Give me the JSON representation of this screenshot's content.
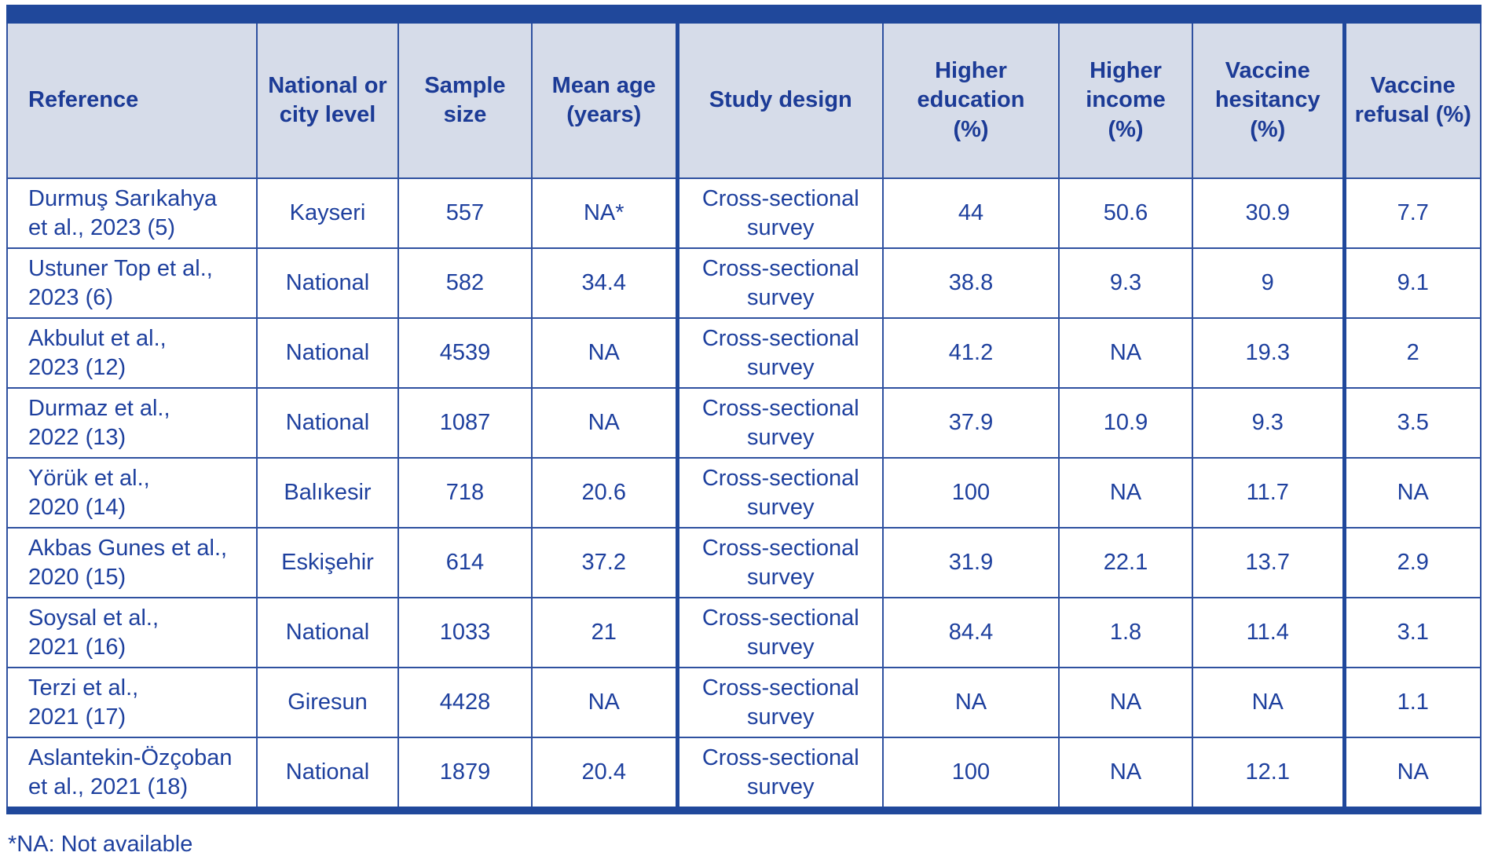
{
  "table": {
    "columns": [
      {
        "key": "reference",
        "label": "Reference"
      },
      {
        "key": "level",
        "label": "National or\ncity level"
      },
      {
        "key": "sample_size",
        "label": "Sample\nsize"
      },
      {
        "key": "mean_age",
        "label": "Mean age\n(years)"
      },
      {
        "key": "study_design",
        "label": "Study design"
      },
      {
        "key": "higher_education",
        "label": "Higher\neducation\n(%)"
      },
      {
        "key": "higher_income",
        "label": "Higher\nincome\n(%)"
      },
      {
        "key": "vaccine_hesitancy",
        "label": "Vaccine\nhesitancy\n(%)"
      },
      {
        "key": "vaccine_refusal",
        "label": "Vaccine\nrefusal (%)"
      }
    ],
    "rows": [
      {
        "reference": "Durmuş Sarıkahya\net al., 2023 (5)",
        "level": "Kayseri",
        "sample_size": "557",
        "mean_age": "NA*",
        "study_design": "Cross-sectional\nsurvey",
        "higher_education": "44",
        "higher_income": "50.6",
        "vaccine_hesitancy": "30.9",
        "vaccine_refusal": "7.7"
      },
      {
        "reference": "Ustuner Top et al.,\n2023 (6)",
        "level": "National",
        "sample_size": "582",
        "mean_age": "34.4",
        "study_design": "Cross-sectional\nsurvey",
        "higher_education": "38.8",
        "higher_income": "9.3",
        "vaccine_hesitancy": "9",
        "vaccine_refusal": "9.1"
      },
      {
        "reference": "Akbulut et al.,\n2023 (12)",
        "level": "National",
        "sample_size": "4539",
        "mean_age": "NA",
        "study_design": "Cross-sectional\nsurvey",
        "higher_education": "41.2",
        "higher_income": "NA",
        "vaccine_hesitancy": "19.3",
        "vaccine_refusal": "2"
      },
      {
        "reference": "Durmaz et al.,\n2022 (13)",
        "level": "National",
        "sample_size": "1087",
        "mean_age": "NA",
        "study_design": "Cross-sectional\nsurvey",
        "higher_education": "37.9",
        "higher_income": "10.9",
        "vaccine_hesitancy": "9.3",
        "vaccine_refusal": "3.5"
      },
      {
        "reference": "Yörük et al.,\n2020 (14)",
        "level": "Balıkesir",
        "sample_size": "718",
        "mean_age": "20.6",
        "study_design": "Cross-sectional\nsurvey",
        "higher_education": "100",
        "higher_income": "NA",
        "vaccine_hesitancy": "11.7",
        "vaccine_refusal": "NA"
      },
      {
        "reference": "Akbas Gunes et al.,\n2020 (15)",
        "level": "Eskişehir",
        "sample_size": "614",
        "mean_age": "37.2",
        "study_design": "Cross-sectional\nsurvey",
        "higher_education": "31.9",
        "higher_income": "22.1",
        "vaccine_hesitancy": "13.7",
        "vaccine_refusal": "2.9"
      },
      {
        "reference": "Soysal et al.,\n2021 (16)",
        "level": "National",
        "sample_size": "1033",
        "mean_age": "21",
        "study_design": "Cross-sectional\nsurvey",
        "higher_education": "84.4",
        "higher_income": "1.8",
        "vaccine_hesitancy": "11.4",
        "vaccine_refusal": "3.1"
      },
      {
        "reference": "Terzi et al.,\n2021 (17)",
        "level": "Giresun",
        "sample_size": "4428",
        "mean_age": "NA",
        "study_design": "Cross-sectional\nsurvey",
        "higher_education": "NA",
        "higher_income": "NA",
        "vaccine_hesitancy": "NA",
        "vaccine_refusal": "1.1"
      },
      {
        "reference": "Aslantekin-Özçoban\net al., 2021 (18)",
        "level": "National",
        "sample_size": "1879",
        "mean_age": "20.4",
        "study_design": "Cross-sectional\nsurvey",
        "higher_education": "100",
        "higher_income": "NA",
        "vaccine_hesitancy": "12.1",
        "vaccine_refusal": "NA"
      }
    ]
  },
  "footnote": "*NA: Not available",
  "colors": {
    "bar_dark_blue": "#20489b",
    "header_background": "#d6dce9",
    "text_blue": "#1e409e",
    "grid_blue": "#2f51a0"
  }
}
